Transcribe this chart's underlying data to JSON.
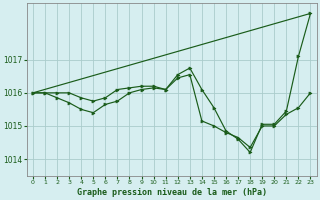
{
  "title": "Graphe pression niveau de la mer (hPa)",
  "background_color": "#d6eef0",
  "grid_color": "#aacccc",
  "line_color": "#1a5c1a",
  "marker_color": "#1a5c1a",
  "xlim": [
    -0.5,
    23.5
  ],
  "ylim": [
    1013.5,
    1018.7
  ],
  "yticks": [
    1014,
    1015,
    1016,
    1017
  ],
  "xticks": [
    0,
    1,
    2,
    3,
    4,
    5,
    6,
    7,
    8,
    9,
    10,
    11,
    12,
    13,
    14,
    15,
    16,
    17,
    18,
    19,
    20,
    21,
    22,
    23
  ],
  "series": [
    {
      "x": [
        0,
        1,
        2,
        3,
        4,
        5,
        6,
        7,
        8,
        9,
        10,
        11,
        12,
        13,
        14,
        15,
        16,
        17,
        18,
        19,
        20,
        21,
        22,
        23
      ],
      "y": [
        1016.0,
        1016.0,
        1016.0,
        1016.0,
        1015.85,
        1015.75,
        1015.85,
        1016.1,
        1016.15,
        1016.2,
        1016.2,
        1016.1,
        1016.55,
        1016.75,
        1016.1,
        1015.55,
        1014.85,
        1014.6,
        1014.2,
        1015.05,
        1015.05,
        1015.45,
        1017.1,
        1018.4
      ]
    },
    {
      "x": [
        0,
        1,
        2,
        3,
        4,
        5,
        6,
        7,
        8,
        9,
        10,
        11,
        12,
        13,
        14,
        15,
        16,
        17,
        18,
        19,
        20,
        21,
        22,
        23
      ],
      "y": [
        1016.0,
        1016.0,
        1015.85,
        1015.7,
        1015.5,
        1015.4,
        1015.65,
        1015.75,
        1016.0,
        1016.1,
        1016.15,
        1016.1,
        1016.45,
        1016.55,
        1015.15,
        1015.0,
        1014.8,
        1014.65,
        1014.35,
        1015.0,
        1015.0,
        1015.35,
        1015.55,
        1016.0
      ]
    },
    {
      "x": [
        0,
        23
      ],
      "y": [
        1016.0,
        1018.4
      ]
    }
  ]
}
